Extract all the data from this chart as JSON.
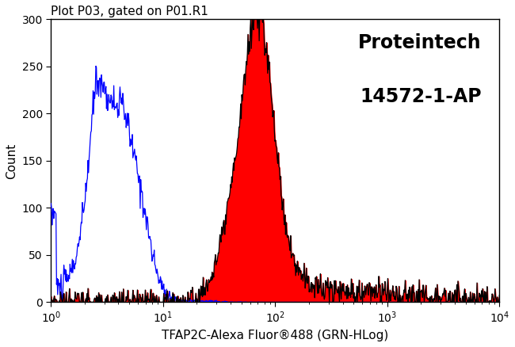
{
  "title": "Plot P03, gated on P01.R1",
  "xlabel": "TFAP2C-Alexa Fluor®488 (GRN-HLog)",
  "ylabel": "Count",
  "annotation_line1": "Proteintech",
  "annotation_line2": "14572-1-AP",
  "xlim": [
    1.0,
    10000.0
  ],
  "ylim": [
    0,
    300
  ],
  "yticks": [
    0,
    50,
    100,
    150,
    200,
    250,
    300
  ],
  "blue_color": "#0000ff",
  "red_color": "#ff0000",
  "black_color": "#000000",
  "background_color": "#ffffff",
  "title_fontsize": 11,
  "label_fontsize": 11,
  "annotation_fontsize": 17,
  "tick_fontsize": 10
}
